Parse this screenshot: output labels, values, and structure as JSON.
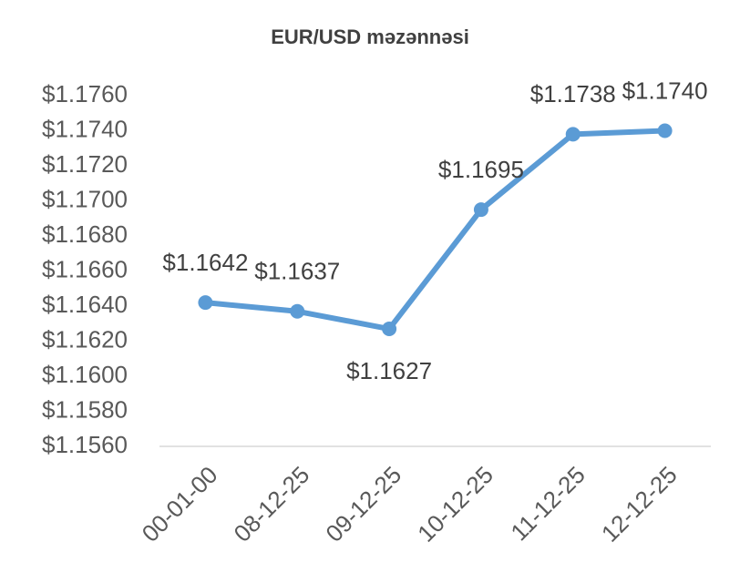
{
  "chart_data": {
    "type": "line",
    "title": "EUR/USD məzənnəsi",
    "categories": [
      "00-01-00",
      "08-12-25",
      "09-12-25",
      "10-12-25",
      "11-12-25",
      "12-12-25"
    ],
    "series": [
      {
        "name": "EUR/USD",
        "color": "#5b9bd5",
        "values": [
          1.1642,
          1.1637,
          1.1627,
          1.1695,
          1.1738,
          1.174
        ],
        "value_labels": [
          "$1.1642",
          "$1.1637",
          "$1.1627",
          "$1.1695",
          "$1.1738",
          "$1.1740"
        ]
      }
    ],
    "ylim": [
      1.156,
      1.176
    ],
    "yticks": [
      {
        "value": 1.156,
        "label": "$1.1560"
      },
      {
        "value": 1.158,
        "label": "$1.1580"
      },
      {
        "value": 1.16,
        "label": "$1.1600"
      },
      {
        "value": 1.162,
        "label": "$1.1620"
      },
      {
        "value": 1.164,
        "label": "$1.1640"
      },
      {
        "value": 1.166,
        "label": "$1.1660"
      },
      {
        "value": 1.168,
        "label": "$1.1680"
      },
      {
        "value": 1.17,
        "label": "$1.1700"
      },
      {
        "value": 1.172,
        "label": "$1.1720"
      },
      {
        "value": 1.174,
        "label": "$1.1740"
      },
      {
        "value": 1.176,
        "label": "$1.1760"
      }
    ],
    "grid": false
  }
}
